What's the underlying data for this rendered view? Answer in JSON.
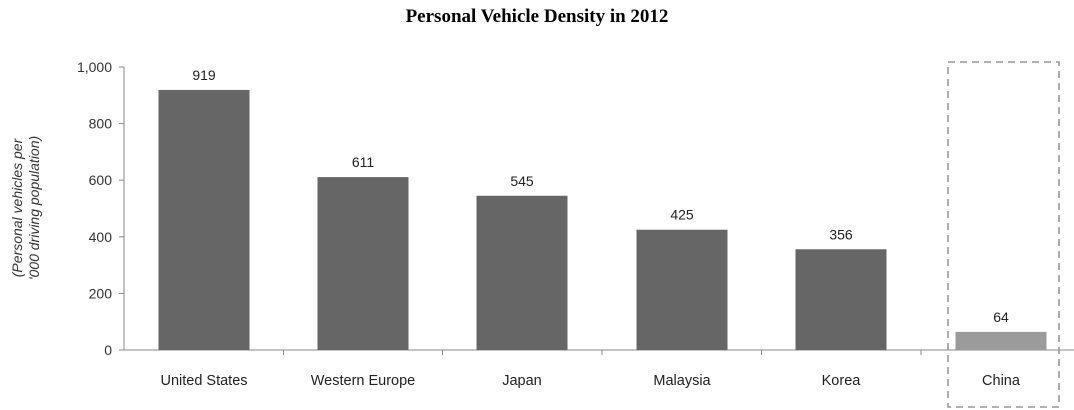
{
  "chart_data": {
    "type": "bar",
    "title": "Personal Vehicle Density in 2012",
    "ylabel_lines": [
      "(Personal vehicles per",
      "'000 driving population)"
    ],
    "xlabel": "",
    "categories": [
      "United States",
      "Western Europe",
      "Japan",
      "Malaysia",
      "Korea",
      "China"
    ],
    "values": [
      919,
      611,
      545,
      425,
      356,
      64
    ],
    "data_labels": [
      "919",
      "611",
      "545",
      "425",
      "356",
      "64"
    ],
    "ylim": [
      0,
      1000
    ],
    "yticks": [
      0,
      200,
      400,
      600,
      800,
      1000
    ],
    "ytick_labels": [
      "0",
      "200",
      "400",
      "600",
      "800",
      "1,000"
    ],
    "grid": false,
    "legend": "none",
    "highlighted_category": "China",
    "colors": {
      "bar": "#666667",
      "highlight_bar": "#9b9b9b",
      "axis": "#888888",
      "highlight_box": "#999999"
    }
  }
}
